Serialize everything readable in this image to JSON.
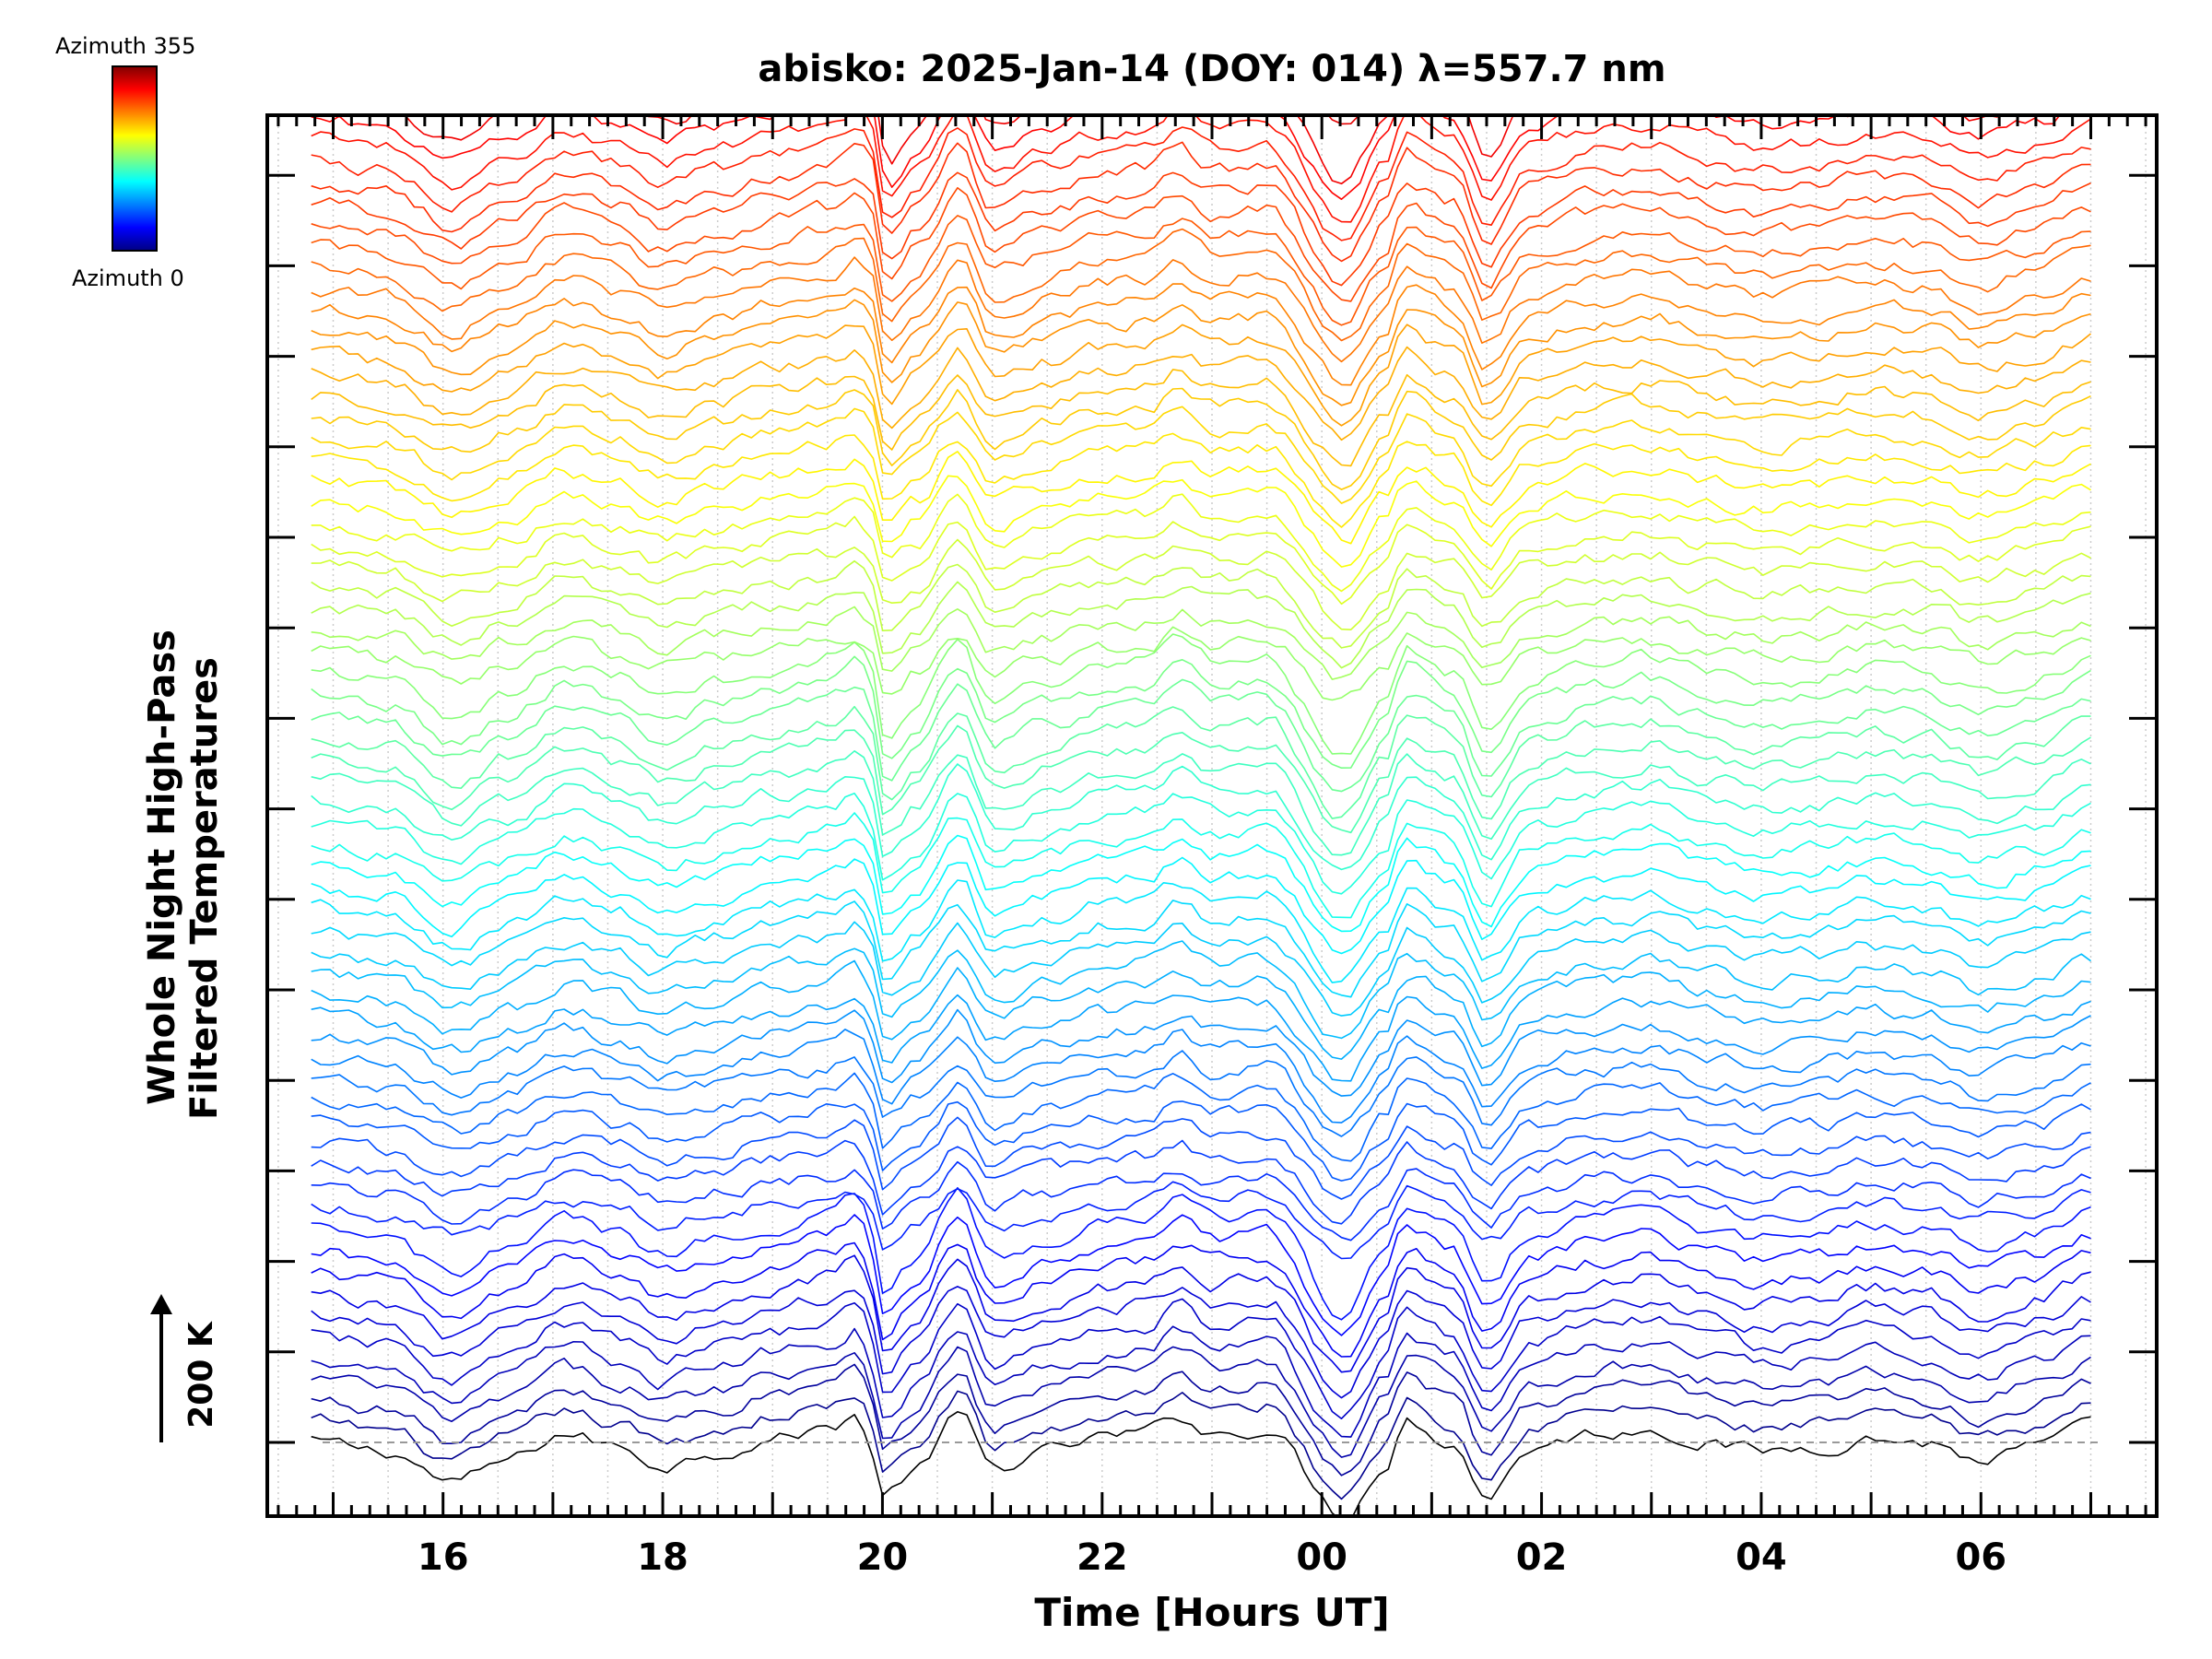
{
  "chart_data": {
    "type": "line",
    "title": "abisko: 2025-Jan-14 (DOY: 014) λ=557.7 nm",
    "xlabel": "Time [Hours UT]",
    "ylabel_line1": "Whole Night High-Pass",
    "ylabel_line2": "Filtered Temperatures",
    "x_tick_labels": [
      "16",
      "18",
      "20",
      "22",
      "00",
      "02",
      "04",
      "06"
    ],
    "x_tick_hours": [
      16,
      18,
      20,
      22,
      24,
      26,
      28,
      30
    ],
    "xlim_hours": [
      14.4,
      31.6
    ],
    "data_start_hour": 14.8,
    "data_end_hour": 31.0,
    "colorbar": {
      "top_label": "Azimuth 355",
      "bottom_label": "Azimuth 0",
      "min": 0,
      "max": 355
    },
    "scale_bar_label": "200 K",
    "azimuth_step_deg": 5,
    "num_series": 72,
    "vertical_offset_between_series_K": 25,
    "grid": "vertical dotted lines",
    "background_pattern_anchors": [
      {
        "t": 14.8,
        "v": 0
      },
      {
        "t": 15.5,
        "v": -10
      },
      {
        "t": 16.1,
        "v": -45
      },
      {
        "t": 16.6,
        "v": -20
      },
      {
        "t": 17.1,
        "v": 10
      },
      {
        "t": 17.6,
        "v": -5
      },
      {
        "t": 18.0,
        "v": -25
      },
      {
        "t": 18.5,
        "v": -10
      },
      {
        "t": 19.0,
        "v": 5
      },
      {
        "t": 19.5,
        "v": 15
      },
      {
        "t": 19.75,
        "v": 30
      },
      {
        "t": 19.85,
        "v": 15
      },
      {
        "t": 20.0,
        "v": -60
      },
      {
        "t": 20.3,
        "v": -30
      },
      {
        "t": 20.7,
        "v": 30
      },
      {
        "t": 21.0,
        "v": -30
      },
      {
        "t": 21.5,
        "v": -10
      },
      {
        "t": 22.0,
        "v": 5
      },
      {
        "t": 22.4,
        "v": 10
      },
      {
        "t": 22.7,
        "v": 30
      },
      {
        "t": 23.0,
        "v": 10
      },
      {
        "t": 23.5,
        "v": 15
      },
      {
        "t": 24.2,
        "v": -80
      },
      {
        "t": 24.6,
        "v": -20
      },
      {
        "t": 24.75,
        "v": 25
      },
      {
        "t": 25.2,
        "v": 0
      },
      {
        "t": 25.5,
        "v": -60
      },
      {
        "t": 25.9,
        "v": -5
      },
      {
        "t": 26.5,
        "v": 10
      },
      {
        "t": 27.0,
        "v": 15
      },
      {
        "t": 27.5,
        "v": 0
      },
      {
        "t": 28.0,
        "v": -10
      },
      {
        "t": 28.5,
        "v": -5
      },
      {
        "t": 29.0,
        "v": 5
      },
      {
        "t": 29.5,
        "v": 0
      },
      {
        "t": 30.0,
        "v": -20
      },
      {
        "t": 30.5,
        "v": -5
      },
      {
        "t": 31.0,
        "v": 15
      }
    ]
  }
}
